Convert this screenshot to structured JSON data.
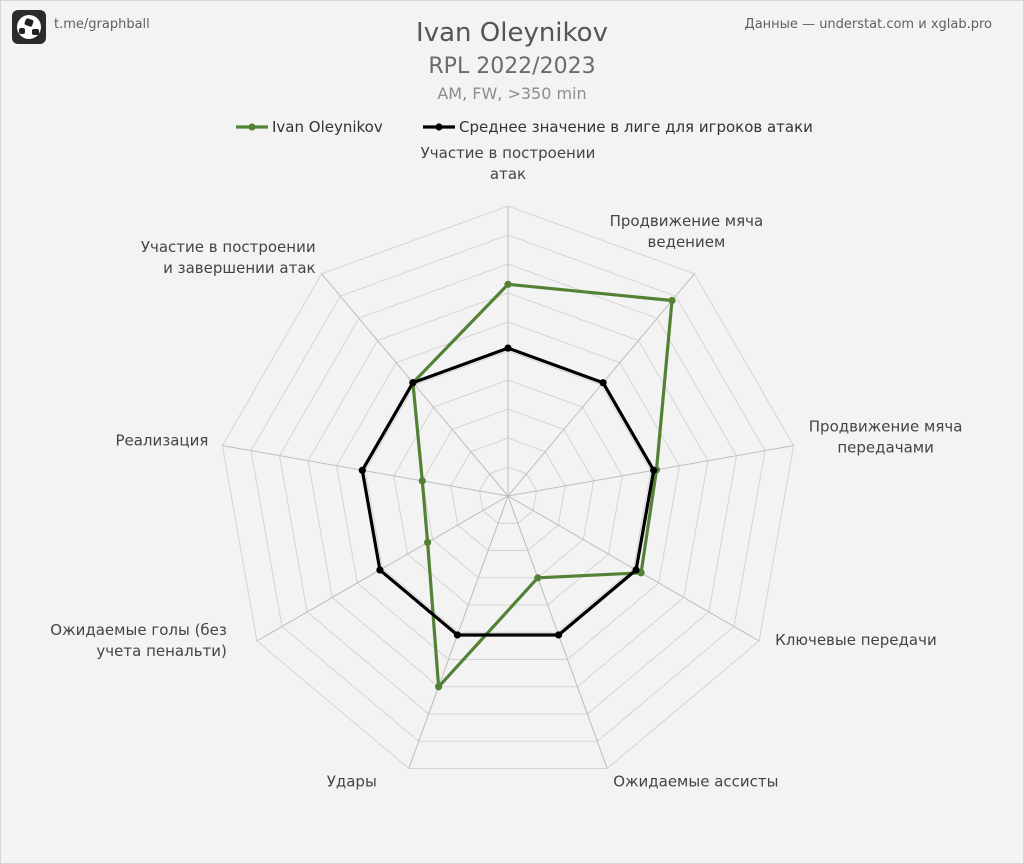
{
  "header": {
    "brand": "t.me/graphball",
    "source": "Данные — understat.com и xglab.pro",
    "title": "Ivan Oleynikov",
    "subtitle": "RPL 2022/2023",
    "note": "AM, FW, >350 min"
  },
  "chart_data": {
    "type": "radar",
    "axes": [
      [
        "Участие в построении",
        "атак"
      ],
      [
        "Продвижение мяча",
        "ведением"
      ],
      [
        "Продвижение мяча",
        "передачами"
      ],
      [
        "Ключевые передачи"
      ],
      [
        "Ожидаемые ассисты"
      ],
      [
        "Удары"
      ],
      [
        "Ожидаемые голы (без",
        "учета пенальти)"
      ],
      [
        "Реализация"
      ],
      [
        "Участие в построении",
        "и завершении атак"
      ]
    ],
    "rlim": [
      0,
      100
    ],
    "grid_rings": 10,
    "grid": true,
    "legend_position": "top",
    "series": [
      {
        "name": "Ivan Oleynikov",
        "color": "#538135",
        "values": [
          73,
          88,
          52,
          53,
          30,
          70,
          32,
          30,
          51
        ]
      },
      {
        "name": "Среднее значение в лиге для игроков атаки",
        "color": "#000000",
        "values": [
          51,
          51,
          51,
          51,
          51,
          51,
          51,
          51,
          51
        ]
      }
    ]
  }
}
